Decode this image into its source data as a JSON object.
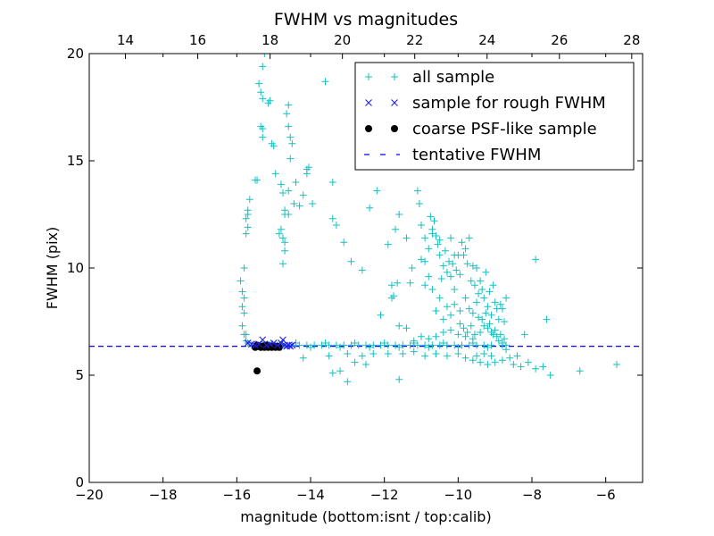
{
  "chart_data": {
    "type": "scatter",
    "title": "FWHM vs magnitudes",
    "xlabel": "magnitude (bottom:isnt / top:calib)",
    "ylabel": "FWHM (pix)",
    "xlim": [
      -20,
      -5
    ],
    "ylim": [
      0,
      20
    ],
    "top_xlim": [
      13.0,
      28.3
    ],
    "x_ticks": [
      -20,
      -18,
      -16,
      -14,
      -12,
      -10,
      -8,
      -6
    ],
    "x_tick_labels": [
      "−20",
      "−18",
      "−16",
      "−14",
      "−12",
      "−10",
      "−8",
      "−6"
    ],
    "top_ticks": [
      14,
      16,
      18,
      20,
      22,
      24,
      26,
      28
    ],
    "top_tick_labels": [
      "14",
      "16",
      "18",
      "20",
      "22",
      "24",
      "26",
      "28"
    ],
    "y_ticks": [
      0,
      5,
      10,
      15,
      20
    ],
    "y_tick_labels": [
      "0",
      "5",
      "10",
      "15",
      "20"
    ],
    "legend_position": "top-right",
    "colors": {
      "all": "#17bfbf",
      "rough": "#1f1fe6",
      "coarse": "#000000",
      "tentative": "#0000ff"
    },
    "series": [
      {
        "name": "all sample",
        "marker": "+",
        "points": [
          [
            -15.9,
            9.4
          ],
          [
            -15.85,
            8.9
          ],
          [
            -15.85,
            8.2
          ],
          [
            -15.8,
            8.6
          ],
          [
            -15.8,
            7.9
          ],
          [
            -15.85,
            7.3
          ],
          [
            -15.8,
            6.9
          ],
          [
            -15.75,
            6.6
          ],
          [
            -15.75,
            6.9
          ],
          [
            -15.7,
            6.5
          ],
          [
            -15.8,
            10.0
          ],
          [
            -15.75,
            11.6
          ],
          [
            -15.7,
            11.9
          ],
          [
            -15.75,
            12.3
          ],
          [
            -15.7,
            12.7
          ],
          [
            -15.65,
            13.2
          ],
          [
            -15.7,
            12.5
          ],
          [
            -15.5,
            14.1
          ],
          [
            -15.45,
            14.1
          ],
          [
            -15.4,
            18.6
          ],
          [
            -15.35,
            18.2
          ],
          [
            -15.3,
            19.4
          ],
          [
            -15.3,
            17.9
          ],
          [
            -15.35,
            16.6
          ],
          [
            -15.3,
            16.5
          ],
          [
            -15.3,
            16.1
          ],
          [
            -15.25,
            20.0
          ],
          [
            -15.15,
            17.7
          ],
          [
            -15.1,
            17.8
          ],
          [
            -15.05,
            15.8
          ],
          [
            -15.0,
            15.7
          ],
          [
            -14.95,
            14.4
          ],
          [
            -14.8,
            13.9
          ],
          [
            -14.75,
            13.5
          ],
          [
            -14.7,
            12.7
          ],
          [
            -14.7,
            12.5
          ],
          [
            -14.75,
            11.4
          ],
          [
            -14.7,
            11.2
          ],
          [
            -14.8,
            11.8
          ],
          [
            -14.85,
            11.6
          ],
          [
            -14.7,
            10.8
          ],
          [
            -14.75,
            10.2
          ],
          [
            -14.6,
            16.6
          ],
          [
            -14.55,
            16.1
          ],
          [
            -14.5,
            15.8
          ],
          [
            -14.55,
            15.1
          ],
          [
            -14.45,
            13.0
          ],
          [
            -14.6,
            12.5
          ],
          [
            -14.6,
            13.6
          ],
          [
            -14.65,
            17.2
          ],
          [
            -14.6,
            17.6
          ],
          [
            -14.4,
            14.0
          ],
          [
            -14.3,
            12.9
          ],
          [
            -14.2,
            13.4
          ],
          [
            -14.1,
            14.6
          ],
          [
            -14.05,
            14.7
          ],
          [
            -14.1,
            14.4
          ],
          [
            -13.95,
            13.0
          ],
          [
            -13.6,
            18.7
          ],
          [
            -13.4,
            14.0
          ],
          [
            -13.4,
            12.3
          ],
          [
            -13.3,
            12.0
          ],
          [
            -13.1,
            11.2
          ],
          [
            -12.9,
            10.3
          ],
          [
            -12.6,
            9.9
          ],
          [
            -12.4,
            12.8
          ],
          [
            -12.2,
            13.6
          ],
          [
            -12.1,
            7.8
          ],
          [
            -11.9,
            11.1
          ],
          [
            -11.8,
            9.2
          ],
          [
            -11.8,
            8.6
          ],
          [
            -11.75,
            8.7
          ],
          [
            -11.7,
            11.8
          ],
          [
            -11.65,
            9.3
          ],
          [
            -11.6,
            12.5
          ],
          [
            -11.4,
            11.4
          ],
          [
            -11.3,
            9.3
          ],
          [
            -11.25,
            10.0
          ],
          [
            -11.1,
            13.6
          ],
          [
            -11.05,
            13.0
          ],
          [
            -11.0,
            10.4
          ],
          [
            -11.0,
            12.0
          ],
          [
            -10.9,
            11.4
          ],
          [
            -10.9,
            10.3
          ],
          [
            -10.8,
            10.9
          ],
          [
            -10.8,
            9.6
          ],
          [
            -10.75,
            12.4
          ],
          [
            -10.7,
            11.8
          ],
          [
            -10.7,
            11.6
          ],
          [
            -10.65,
            12.2
          ],
          [
            -10.6,
            11.5
          ],
          [
            -10.55,
            11.1
          ],
          [
            -10.5,
            11.3
          ],
          [
            -10.5,
            10.6
          ],
          [
            -10.45,
            9.5
          ],
          [
            -10.4,
            10.1
          ],
          [
            -10.35,
            10.8
          ],
          [
            -10.3,
            9.8
          ],
          [
            -10.25,
            10.3
          ],
          [
            -10.2,
            11.4
          ],
          [
            -10.2,
            9.6
          ],
          [
            -10.15,
            10.2
          ],
          [
            -10.1,
            9.0
          ],
          [
            -10.1,
            10.6
          ],
          [
            -10.05,
            9.9
          ],
          [
            -10.0,
            10.6
          ],
          [
            -9.95,
            9.7
          ],
          [
            -9.9,
            11.2
          ],
          [
            -9.85,
            10.6
          ],
          [
            -9.8,
            10.9
          ],
          [
            -9.75,
            10.2
          ],
          [
            -9.7,
            11.4
          ],
          [
            -9.65,
            9.4
          ],
          [
            -9.6,
            10.1
          ],
          [
            -9.55,
            9.2
          ],
          [
            -9.5,
            10.0
          ],
          [
            -9.45,
            8.8
          ],
          [
            -9.4,
            9.4
          ],
          [
            -9.35,
            9.0
          ],
          [
            -9.3,
            8.6
          ],
          [
            -9.25,
            9.8
          ],
          [
            -9.2,
            8.2
          ],
          [
            -9.15,
            8.9
          ],
          [
            -9.1,
            7.8
          ],
          [
            -9.05,
            9.2
          ],
          [
            -9.0,
            8.4
          ],
          [
            -8.95,
            8.1
          ],
          [
            -8.9,
            7.6
          ],
          [
            -8.85,
            8.3
          ],
          [
            -8.8,
            8.1
          ],
          [
            -8.75,
            7.5
          ],
          [
            -8.7,
            8.6
          ],
          [
            -10.9,
            9.2
          ],
          [
            -10.7,
            9.0
          ],
          [
            -10.5,
            8.6
          ],
          [
            -10.3,
            8.2
          ],
          [
            -10.6,
            8.0
          ],
          [
            -10.2,
            7.8
          ],
          [
            -10.4,
            7.6
          ],
          [
            -10.1,
            8.3
          ],
          [
            -9.95,
            8.0
          ],
          [
            -9.8,
            8.6
          ],
          [
            -9.7,
            8.1
          ],
          [
            -9.6,
            7.9
          ],
          [
            -9.5,
            8.4
          ],
          [
            -9.45,
            7.7
          ],
          [
            -9.35,
            7.6
          ],
          [
            -9.3,
            7.3
          ],
          [
            -9.25,
            7.9
          ],
          [
            -9.2,
            7.2
          ],
          [
            -9.15,
            7.4
          ],
          [
            -9.1,
            7.0
          ],
          [
            -9.05,
            6.9
          ],
          [
            -9.0,
            7.1
          ],
          [
            -8.95,
            6.8
          ],
          [
            -8.9,
            6.6
          ],
          [
            -8.85,
            6.9
          ],
          [
            -8.8,
            6.5
          ],
          [
            -8.75,
            6.7
          ],
          [
            -8.7,
            6.4
          ],
          [
            -9.95,
            7.4
          ],
          [
            -9.85,
            7.2
          ],
          [
            -9.75,
            7.0
          ],
          [
            -9.65,
            7.3
          ],
          [
            -9.55,
            6.9
          ],
          [
            -9.4,
            7.0
          ],
          [
            -9.6,
            6.7
          ],
          [
            -9.8,
            6.8
          ],
          [
            -10.0,
            6.9
          ],
          [
            -10.2,
            7.1
          ],
          [
            -10.4,
            7.0
          ],
          [
            -10.6,
            6.8
          ],
          [
            -10.8,
            6.7
          ],
          [
            -11.0,
            6.8
          ],
          [
            -11.2,
            6.6
          ],
          [
            -11.4,
            7.2
          ],
          [
            -11.6,
            7.3
          ],
          [
            -10.0,
            6.0
          ],
          [
            -9.8,
            5.8
          ],
          [
            -9.6,
            5.7
          ],
          [
            -9.4,
            5.6
          ],
          [
            -9.2,
            5.5
          ],
          [
            -9.0,
            5.6
          ],
          [
            -8.8,
            5.7
          ],
          [
            -8.6,
            5.8
          ],
          [
            -8.5,
            5.5
          ],
          [
            -8.3,
            5.4
          ],
          [
            -8.1,
            5.6
          ],
          [
            -7.9,
            5.3
          ],
          [
            -7.7,
            5.4
          ],
          [
            -7.5,
            5.0
          ],
          [
            -6.7,
            5.2
          ],
          [
            -5.7,
            5.5
          ],
          [
            -7.6,
            7.6
          ],
          [
            -7.9,
            10.4
          ],
          [
            -8.2,
            6.9
          ],
          [
            -8.4,
            5.9
          ],
          [
            -8.7,
            6.2
          ],
          [
            -9.1,
            5.9
          ],
          [
            -9.3,
            6.0
          ],
          [
            -9.5,
            5.9
          ],
          [
            -10.3,
            5.9
          ],
          [
            -10.6,
            6.0
          ],
          [
            -10.9,
            5.9
          ],
          [
            -11.2,
            6.1
          ],
          [
            -11.5,
            6.0
          ],
          [
            -15.6,
            6.4
          ],
          [
            -15.5,
            6.4
          ],
          [
            -15.3,
            6.4
          ],
          [
            -15.1,
            6.4
          ],
          [
            -14.9,
            6.4
          ],
          [
            -14.7,
            6.4
          ],
          [
            -14.5,
            6.4
          ],
          [
            -14.3,
            6.4
          ],
          [
            -14.1,
            6.4
          ],
          [
            -13.9,
            6.4
          ],
          [
            -13.7,
            6.4
          ],
          [
            -13.5,
            6.4
          ],
          [
            -13.3,
            6.4
          ],
          [
            -13.1,
            6.4
          ],
          [
            -12.9,
            6.4
          ],
          [
            -12.7,
            6.4
          ],
          [
            -12.5,
            6.4
          ],
          [
            -12.3,
            6.4
          ],
          [
            -12.1,
            6.4
          ],
          [
            -11.9,
            6.4
          ],
          [
            -11.7,
            6.4
          ],
          [
            -11.5,
            6.4
          ],
          [
            -11.3,
            6.4
          ],
          [
            -11.1,
            6.4
          ],
          [
            -10.9,
            6.4
          ],
          [
            -10.7,
            6.4
          ],
          [
            -10.5,
            6.4
          ],
          [
            -10.3,
            6.4
          ],
          [
            -10.1,
            6.4
          ],
          [
            -9.9,
            6.4
          ],
          [
            -9.7,
            6.4
          ],
          [
            -9.5,
            6.4
          ],
          [
            -9.3,
            6.4
          ],
          [
            -9.1,
            6.4
          ],
          [
            -14.8,
            6.3
          ],
          [
            -14.4,
            6.5
          ],
          [
            -14.0,
            6.3
          ],
          [
            -13.6,
            6.5
          ],
          [
            -13.2,
            6.3
          ],
          [
            -12.8,
            6.5
          ],
          [
            -12.4,
            6.3
          ],
          [
            -12.0,
            6.5
          ],
          [
            -11.6,
            6.3
          ],
          [
            -11.2,
            6.5
          ],
          [
            -10.8,
            6.3
          ],
          [
            -10.4,
            6.5
          ],
          [
            -10.0,
            6.3
          ],
          [
            -9.6,
            6.5
          ],
          [
            -9.2,
            6.3
          ],
          [
            -8.8,
            6.4
          ],
          [
            -14.2,
            5.8
          ],
          [
            -13.4,
            5.1
          ],
          [
            -13.2,
            5.2
          ],
          [
            -13.0,
            4.7
          ],
          [
            -12.8,
            5.6
          ],
          [
            -12.5,
            5.5
          ],
          [
            -11.6,
            4.8
          ],
          [
            -12.3,
            6.0
          ],
          [
            -12.6,
            5.9
          ],
          [
            -13.0,
            6.0
          ],
          [
            -13.5,
            5.9
          ],
          [
            -11.9,
            6.0
          ]
        ]
      },
      {
        "name": "sample for rough FWHM",
        "marker": "x",
        "points": [
          [
            -15.7,
            6.5
          ],
          [
            -15.6,
            6.45
          ],
          [
            -15.5,
            6.4
          ],
          [
            -15.4,
            6.45
          ],
          [
            -15.3,
            6.65
          ],
          [
            -15.2,
            6.4
          ],
          [
            -15.1,
            6.45
          ],
          [
            -15.0,
            6.5
          ],
          [
            -14.9,
            6.4
          ],
          [
            -14.8,
            6.5
          ],
          [
            -14.75,
            6.65
          ],
          [
            -14.7,
            6.4
          ],
          [
            -14.65,
            6.35
          ],
          [
            -14.6,
            6.4
          ],
          [
            -14.55,
            6.35
          ],
          [
            -14.5,
            6.4
          ]
        ]
      },
      {
        "name": "coarse PSF-like sample",
        "marker": "o",
        "points": [
          [
            -15.5,
            6.3
          ],
          [
            -15.45,
            6.4
          ],
          [
            -15.4,
            6.35
          ],
          [
            -15.35,
            6.3
          ],
          [
            -15.3,
            6.35
          ],
          [
            -15.25,
            6.3
          ],
          [
            -15.2,
            6.4
          ],
          [
            -15.15,
            6.3
          ],
          [
            -15.1,
            6.35
          ],
          [
            -15.05,
            6.3
          ],
          [
            -15.0,
            6.35
          ],
          [
            -14.95,
            6.3
          ],
          [
            -14.9,
            6.35
          ],
          [
            -14.85,
            6.3
          ],
          [
            -15.45,
            5.2
          ]
        ]
      }
    ],
    "tentative_fwhm": 6.35,
    "legend": [
      {
        "label": "all sample",
        "marker": "+"
      },
      {
        "label": "sample for rough FWHM",
        "marker": "x"
      },
      {
        "label": "coarse PSF-like sample",
        "marker": "o"
      },
      {
        "label": "tentative FWHM",
        "marker": "dash"
      }
    ]
  }
}
